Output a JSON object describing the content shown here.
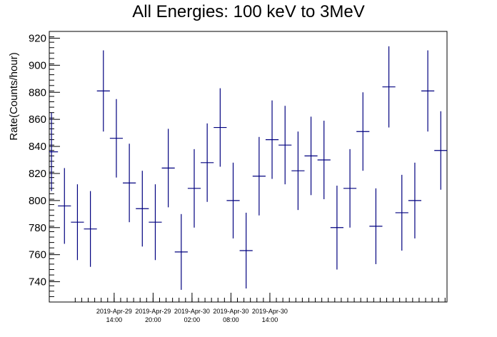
{
  "chart_data": {
    "type": "scatter",
    "title": "All Energies:  100 keV to 3MeV",
    "xlabel": "",
    "ylabel": "Rate(Counts/hour)",
    "ylim": [
      725,
      925
    ],
    "y_ticks": [
      740,
      760,
      780,
      800,
      820,
      840,
      860,
      880,
      900,
      920
    ],
    "x_ticks": [
      {
        "date": "2019-Apr-29",
        "time": "14:00"
      },
      {
        "date": "2019-Apr-29",
        "time": "20:00"
      },
      {
        "date": "2019-Apr-30",
        "time": "02:00"
      },
      {
        "date": "2019-Apr-30",
        "time": "08:00"
      },
      {
        "date": "2019-Apr-30",
        "time": "14:00"
      }
    ],
    "grid": false,
    "legend": "none",
    "color": "#00007f",
    "series": [
      {
        "values": [
          836,
          796,
          784,
          779,
          881,
          846,
          813,
          794,
          784,
          824,
          762,
          809,
          828,
          854,
          800,
          763,
          818,
          845,
          841,
          822,
          833,
          830,
          780,
          809,
          851,
          781,
          884,
          791,
          800,
          881,
          837
        ],
        "errors": [
          29,
          28,
          28,
          28,
          30,
          29,
          29,
          28,
          28,
          29,
          28,
          29,
          29,
          29,
          28,
          28,
          29,
          29,
          29,
          29,
          29,
          29,
          31,
          29,
          29,
          28,
          30,
          28,
          28,
          30,
          29
        ]
      }
    ]
  }
}
